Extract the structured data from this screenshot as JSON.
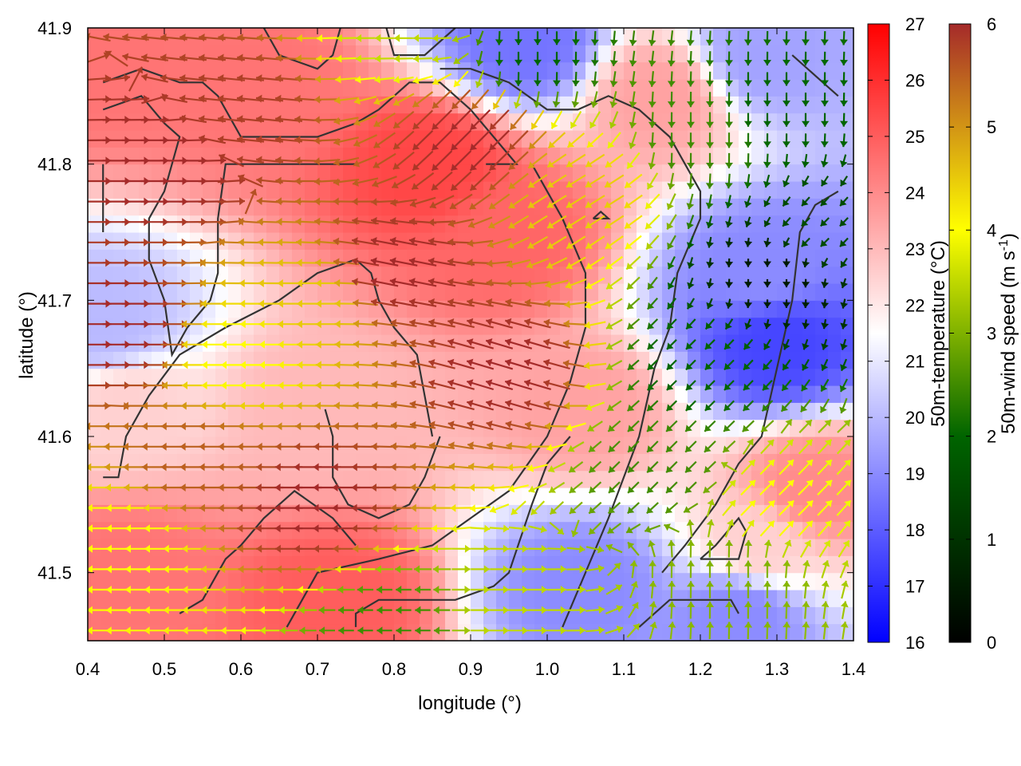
{
  "chart_data": {
    "type": "heatmap",
    "overlay": "wind vector field with contour lines",
    "xlabel": "longitude (°)",
    "ylabel": "latitude (°)",
    "x_ticks": [
      "0.4",
      "0.5",
      "0.6",
      "0.7",
      "0.8",
      "0.9",
      "1.0",
      "1.1",
      "1.2",
      "1.3",
      "1.4"
    ],
    "y_ticks": [
      "41.5",
      "41.6",
      "41.7",
      "41.8",
      "41.9"
    ],
    "xlim": [
      0.4,
      1.4
    ],
    "ylim": [
      41.45,
      41.9
    ],
    "temperature_colorbar": {
      "label": "50m-temperature (°C)",
      "range": [
        16,
        27
      ],
      "ticks": [
        "16",
        "17",
        "18",
        "19",
        "20",
        "21",
        "22",
        "23",
        "24",
        "25",
        "26",
        "27"
      ],
      "colors": [
        "#0000ff",
        "#ffffff",
        "#ff0000"
      ]
    },
    "wind_colorbar": {
      "label_main": "50m-wind speed (m s",
      "label_sup": "-1",
      "label_end": ")",
      "range": [
        0,
        6
      ],
      "ticks": [
        "0",
        "1",
        "2",
        "3",
        "4",
        "5",
        "6"
      ],
      "colors": [
        "#000000",
        "#006400",
        "#ffff00",
        "#a52a2a"
      ]
    },
    "grid": false,
    "temperature_centers": [
      {
        "lon": 0.42,
        "lat": 41.88,
        "t": 24.5
      },
      {
        "lon": 0.62,
        "lat": 41.86,
        "t": 24.5
      },
      {
        "lon": 0.85,
        "lat": 41.8,
        "t": 25.5
      },
      {
        "lon": 0.95,
        "lat": 41.75,
        "t": 24.8
      },
      {
        "lon": 1.15,
        "lat": 41.85,
        "t": 23.5
      },
      {
        "lon": 1.05,
        "lat": 41.62,
        "t": 23.5
      },
      {
        "lon": 0.7,
        "lat": 41.62,
        "t": 23.0
      },
      {
        "lon": 0.45,
        "lat": 41.62,
        "t": 22.5
      },
      {
        "lon": 0.45,
        "lat": 41.5,
        "t": 24.5
      },
      {
        "lon": 0.72,
        "lat": 41.48,
        "t": 25.0
      },
      {
        "lon": 1.35,
        "lat": 41.56,
        "t": 24.0
      },
      {
        "lon": 1.28,
        "lat": 41.52,
        "t": 22.5
      },
      {
        "lon": 1.3,
        "lat": 41.67,
        "t": 17.5
      },
      {
        "lon": 1.28,
        "lat": 41.72,
        "t": 19.0
      },
      {
        "lon": 1.05,
        "lat": 41.49,
        "t": 19.0
      },
      {
        "lon": 1.28,
        "lat": 41.88,
        "t": 19.5
      },
      {
        "lon": 0.97,
        "lat": 41.89,
        "t": 18.5
      },
      {
        "lon": 0.42,
        "lat": 41.68,
        "t": 20.0
      },
      {
        "lon": 1.25,
        "lat": 41.47,
        "t": 19.0
      }
    ],
    "wind_centers": [
      {
        "lon": 0.5,
        "lat": 41.8,
        "u": 1.0,
        "v": 0.0,
        "s": 6.0
      },
      {
        "lon": 0.45,
        "lat": 41.68,
        "u": 1.0,
        "v": 0.0,
        "s": 6.0
      },
      {
        "lon": 0.8,
        "lat": 41.72,
        "u": -1.0,
        "v": 0.2,
        "s": 6.0
      },
      {
        "lon": 0.95,
        "lat": 41.65,
        "u": -1.0,
        "v": 0.3,
        "s": 6.0
      },
      {
        "lon": 0.9,
        "lat": 41.82,
        "u": -0.7,
        "v": -0.7,
        "s": 6.0
      },
      {
        "lon": 0.6,
        "lat": 41.84,
        "u": -1.0,
        "v": 0.1,
        "s": 5.8
      },
      {
        "lon": 0.7,
        "lat": 41.7,
        "u": -1.0,
        "v": 0.0,
        "s": 4.5
      },
      {
        "lon": 0.6,
        "lat": 41.66,
        "u": -1.0,
        "v": 0.0,
        "s": 4.0
      },
      {
        "lon": 0.7,
        "lat": 41.55,
        "u": -1.0,
        "v": 0.0,
        "s": 6.0
      },
      {
        "lon": 0.55,
        "lat": 41.58,
        "u": -1.0,
        "v": 0.0,
        "s": 5.5
      },
      {
        "lon": 0.45,
        "lat": 41.52,
        "u": -1.0,
        "v": 0.0,
        "s": 4.0
      },
      {
        "lon": 1.05,
        "lat": 41.78,
        "u": -0.8,
        "v": -0.5,
        "s": 4.5
      },
      {
        "lon": 1.2,
        "lat": 41.82,
        "u": 0.0,
        "v": -1.0,
        "s": 2.5
      },
      {
        "lon": 1.3,
        "lat": 41.84,
        "u": 0.0,
        "v": -1.0,
        "s": 2.0
      },
      {
        "lon": 1.35,
        "lat": 41.75,
        "u": -0.5,
        "v": -0.5,
        "s": 1.5
      },
      {
        "lon": 1.3,
        "lat": 41.72,
        "u": 0.0,
        "v": -1.0,
        "s": 0.5
      },
      {
        "lon": 1.2,
        "lat": 41.65,
        "u": -0.7,
        "v": -0.7,
        "s": 2.0
      },
      {
        "lon": 1.15,
        "lat": 41.58,
        "u": -0.7,
        "v": -0.7,
        "s": 2.5
      },
      {
        "lon": 1.25,
        "lat": 41.5,
        "u": 0.0,
        "v": 1.0,
        "s": 3.0
      },
      {
        "lon": 1.3,
        "lat": 41.55,
        "u": 0.7,
        "v": 0.7,
        "s": 4.0
      },
      {
        "lon": 0.95,
        "lat": 41.47,
        "u": 1.0,
        "v": 0.0,
        "s": 3.5
      },
      {
        "lon": 0.8,
        "lat": 41.46,
        "u": -1.0,
        "v": 0.0,
        "s": 2.5
      },
      {
        "lon": 0.98,
        "lat": 41.88,
        "u": 0.0,
        "v": -1.0,
        "s": 2.0
      },
      {
        "lon": 0.82,
        "lat": 41.9,
        "u": -1.0,
        "v": 0.0,
        "s": 3.5
      }
    ],
    "contours": [
      [
        [
          0.42,
          41.86
        ],
        [
          0.47,
          41.87
        ],
        [
          0.52,
          41.86
        ],
        [
          0.55,
          41.86
        ],
        [
          0.57,
          41.85
        ],
        [
          0.6,
          41.82
        ],
        [
          0.63,
          41.82
        ],
        [
          0.7,
          41.82
        ],
        [
          0.75,
          41.83
        ],
        [
          0.78,
          41.84
        ],
        [
          0.82,
          41.86
        ],
        [
          0.86,
          41.86
        ],
        [
          0.9,
          41.84
        ],
        [
          0.96,
          41.8
        ],
        [
          0.92,
          41.8
        ]
      ],
      [
        [
          0.42,
          41.84
        ],
        [
          0.47,
          41.85
        ],
        [
          0.5,
          41.83
        ],
        [
          0.52,
          41.82
        ],
        [
          0.51,
          41.8
        ],
        [
          0.5,
          41.78
        ],
        [
          0.48,
          41.76
        ],
        [
          0.48,
          41.73
        ],
        [
          0.5,
          41.7
        ],
        [
          0.51,
          41.66
        ],
        [
          0.53,
          41.68
        ],
        [
          0.56,
          41.7
        ],
        [
          0.57,
          41.72
        ],
        [
          0.57,
          41.76
        ],
        [
          0.58,
          41.8
        ],
        [
          0.6,
          41.8
        ],
        [
          0.63,
          41.8
        ],
        [
          0.7,
          41.8
        ],
        [
          0.75,
          41.8
        ]
      ],
      [
        [
          0.42,
          41.57
        ],
        [
          0.44,
          41.57
        ],
        [
          0.45,
          41.6
        ],
        [
          0.48,
          41.63
        ],
        [
          0.52,
          41.66
        ],
        [
          0.58,
          41.68
        ],
        [
          0.65,
          41.7
        ],
        [
          0.7,
          41.72
        ],
        [
          0.75,
          41.73
        ],
        [
          0.77,
          41.72
        ],
        [
          0.78,
          41.7
        ],
        [
          0.8,
          41.68
        ],
        [
          0.83,
          41.66
        ],
        [
          0.84,
          41.63
        ],
        [
          0.85,
          41.6
        ]
      ],
      [
        [
          0.71,
          41.62
        ],
        [
          0.72,
          41.6
        ],
        [
          0.72,
          41.57
        ],
        [
          0.74,
          41.55
        ],
        [
          0.78,
          41.54
        ],
        [
          0.82,
          41.55
        ],
        [
          0.84,
          41.57
        ],
        [
          0.86,
          41.6
        ]
      ],
      [
        [
          0.52,
          41.47
        ],
        [
          0.55,
          41.48
        ],
        [
          0.58,
          41.51
        ],
        [
          0.6,
          41.52
        ],
        [
          0.63,
          41.54
        ],
        [
          0.67,
          41.56
        ],
        [
          0.72,
          41.54
        ],
        [
          0.75,
          41.52
        ]
      ],
      [
        [
          0.66,
          41.46
        ],
        [
          0.7,
          41.5
        ],
        [
          0.78,
          41.51
        ],
        [
          0.85,
          41.52
        ],
        [
          0.9,
          41.54
        ],
        [
          0.95,
          41.56
        ],
        [
          1.0,
          41.6
        ],
        [
          1.03,
          41.64
        ],
        [
          1.05,
          41.68
        ],
        [
          1.05,
          41.72
        ],
        [
          1.02,
          41.76
        ],
        [
          1.0,
          41.78
        ],
        [
          0.98,
          41.8
        ]
      ],
      [
        [
          0.75,
          41.46
        ],
        [
          0.75,
          41.47
        ],
        [
          0.78,
          41.48
        ],
        [
          0.82,
          41.48
        ],
        [
          0.88,
          41.48
        ],
        [
          0.93,
          41.49
        ],
        [
          0.95,
          41.5
        ],
        [
          0.98,
          41.55
        ],
        [
          1.0,
          41.58
        ],
        [
          1.03,
          41.6
        ]
      ],
      [
        [
          1.02,
          41.46
        ],
        [
          1.05,
          41.5
        ],
        [
          1.08,
          41.54
        ],
        [
          1.1,
          41.57
        ],
        [
          1.12,
          41.6
        ],
        [
          1.14,
          41.65
        ],
        [
          1.16,
          41.68
        ],
        [
          1.17,
          41.72
        ],
        [
          1.2,
          41.76
        ],
        [
          1.2,
          41.78
        ],
        [
          1.16,
          41.82
        ],
        [
          1.12,
          41.84
        ],
        [
          1.08,
          41.85
        ],
        [
          1.04,
          41.84
        ],
        [
          1.0,
          41.84
        ],
        [
          0.95,
          41.86
        ],
        [
          0.9,
          41.87
        ],
        [
          0.86,
          41.87
        ]
      ],
      [
        [
          1.12,
          41.46
        ],
        [
          1.16,
          41.48
        ],
        [
          1.2,
          41.48
        ],
        [
          1.24,
          41.48
        ],
        [
          1.25,
          41.47
        ]
      ],
      [
        [
          1.15,
          41.5
        ],
        [
          1.18,
          41.52
        ],
        [
          1.22,
          41.55
        ],
        [
          1.25,
          41.58
        ],
        [
          1.28,
          41.6
        ],
        [
          1.3,
          41.65
        ],
        [
          1.32,
          41.7
        ],
        [
          1.33,
          41.75
        ],
        [
          1.35,
          41.77
        ],
        [
          1.38,
          41.78
        ]
      ],
      [
        [
          1.2,
          41.51
        ],
        [
          1.25,
          41.51
        ],
        [
          1.26,
          41.53
        ],
        [
          1.25,
          41.54
        ],
        [
          1.22,
          41.52
        ],
        [
          1.2,
          41.51
        ]
      ],
      [
        [
          1.06,
          41.76
        ],
        [
          1.08,
          41.76
        ],
        [
          1.07,
          41.765
        ],
        [
          1.06,
          41.76
        ]
      ],
      [
        [
          0.63,
          41.9
        ],
        [
          0.65,
          41.88
        ],
        [
          0.7,
          41.87
        ],
        [
          0.72,
          41.88
        ],
        [
          0.73,
          41.9
        ]
      ],
      [
        [
          0.79,
          41.9
        ],
        [
          0.8,
          41.88
        ],
        [
          0.84,
          41.88
        ],
        [
          0.88,
          41.9
        ]
      ],
      [
        [
          1.32,
          41.88
        ],
        [
          1.36,
          41.86
        ],
        [
          1.38,
          41.85
        ]
      ],
      [
        [
          0.42,
          41.75
        ],
        [
          0.42,
          41.76
        ],
        [
          0.42,
          41.78
        ],
        [
          0.42,
          41.8
        ]
      ]
    ]
  }
}
